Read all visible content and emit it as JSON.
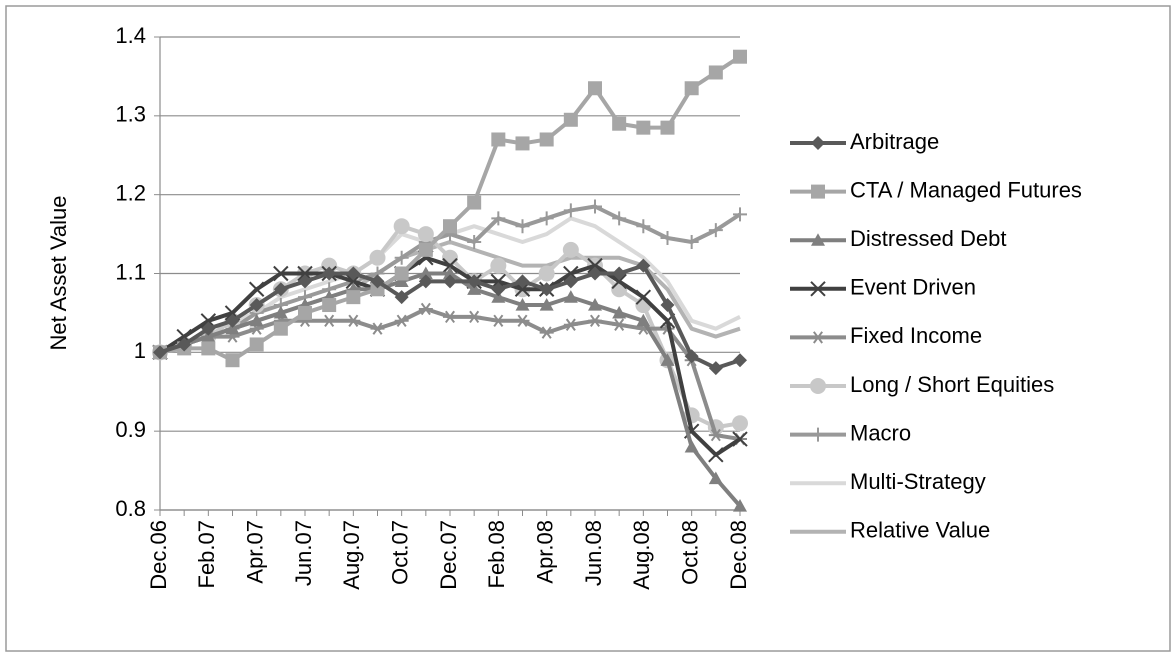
{
  "chart_data": {
    "type": "line",
    "y_label": "Net Asset Value",
    "categories": [
      "Dec.06",
      null,
      "Feb.07",
      null,
      "Apr.07",
      null,
      "Jun.07",
      null,
      "Aug.07",
      null,
      "Oct.07",
      null,
      "Dec.07",
      null,
      "Feb.08",
      null,
      "Apr.08",
      null,
      "Jun.08",
      null,
      "Aug.08",
      null,
      "Oct.08",
      null,
      "Dec.08"
    ],
    "ylim": [
      0.8,
      1.4
    ],
    "yticks": [
      0.8,
      0.9,
      1,
      1.1,
      1.2,
      1.3,
      1.4
    ],
    "grid": true,
    "legend": "right",
    "series": [
      {
        "name": "Arbitrage",
        "color": "#595959",
        "marker": "diamond",
        "values": [
          1.0,
          1.01,
          1.03,
          1.04,
          1.06,
          1.08,
          1.09,
          1.1,
          1.1,
          1.09,
          1.07,
          1.09,
          1.09,
          1.09,
          1.08,
          1.09,
          1.08,
          1.09,
          1.1,
          1.1,
          1.11,
          1.06,
          0.995,
          0.98,
          0.99
        ]
      },
      {
        "name": "CTA / Managed Futures",
        "color": "#a6a6a6",
        "marker": "square",
        "values": [
          1.0,
          1.005,
          1.005,
          0.99,
          1.01,
          1.03,
          1.05,
          1.06,
          1.07,
          1.08,
          1.1,
          1.13,
          1.16,
          1.19,
          1.27,
          1.265,
          1.27,
          1.295,
          1.335,
          1.29,
          1.285,
          1.285,
          1.335,
          1.355,
          1.375
        ]
      },
      {
        "name": "Distressed Debt",
        "color": "#7f7f7f",
        "marker": "triangle",
        "values": [
          1.0,
          1.01,
          1.02,
          1.03,
          1.04,
          1.05,
          1.06,
          1.07,
          1.08,
          1.08,
          1.09,
          1.1,
          1.1,
          1.08,
          1.07,
          1.06,
          1.06,
          1.07,
          1.06,
          1.05,
          1.04,
          0.99,
          0.88,
          0.84,
          0.805
        ]
      },
      {
        "name": "Event Driven",
        "color": "#404040",
        "marker": "x",
        "values": [
          1.0,
          1.02,
          1.04,
          1.05,
          1.08,
          1.1,
          1.1,
          1.1,
          1.09,
          1.08,
          1.1,
          1.12,
          1.11,
          1.09,
          1.09,
          1.08,
          1.08,
          1.1,
          1.11,
          1.09,
          1.07,
          1.04,
          0.9,
          0.87,
          0.89
        ]
      },
      {
        "name": "Fixed Income",
        "color": "#8c8c8c",
        "marker": "asterisk",
        "values": [
          1.0,
          1.01,
          1.02,
          1.02,
          1.03,
          1.04,
          1.04,
          1.04,
          1.04,
          1.03,
          1.04,
          1.055,
          1.045,
          1.045,
          1.04,
          1.04,
          1.025,
          1.035,
          1.04,
          1.035,
          1.03,
          1.03,
          0.99,
          0.895,
          0.89
        ]
      },
      {
        "name": "Long / Short Equities",
        "color": "#c8c8c8",
        "marker": "circle",
        "values": [
          1.0,
          1.01,
          1.02,
          1.04,
          1.06,
          1.08,
          1.1,
          1.11,
          1.1,
          1.12,
          1.16,
          1.15,
          1.12,
          1.09,
          1.11,
          1.08,
          1.1,
          1.13,
          1.11,
          1.08,
          1.06,
          0.99,
          0.92,
          0.905,
          0.91
        ]
      },
      {
        "name": "Macro",
        "color": "#999999",
        "marker": "plus",
        "values": [
          1.0,
          1.01,
          1.02,
          1.03,
          1.05,
          1.06,
          1.07,
          1.08,
          1.09,
          1.1,
          1.12,
          1.14,
          1.15,
          1.14,
          1.17,
          1.16,
          1.17,
          1.18,
          1.185,
          1.17,
          1.16,
          1.145,
          1.14,
          1.155,
          1.175
        ]
      },
      {
        "name": "Multi-Strategy",
        "color": "#d9d9d9",
        "marker": "none",
        "values": [
          1.0,
          1.01,
          1.02,
          1.04,
          1.05,
          1.07,
          1.08,
          1.09,
          1.1,
          1.12,
          1.15,
          1.14,
          1.15,
          1.16,
          1.15,
          1.14,
          1.15,
          1.17,
          1.16,
          1.14,
          1.12,
          1.09,
          1.04,
          1.03,
          1.045
        ]
      },
      {
        "name": "Relative Value",
        "color": "#b3b3b3",
        "marker": "none",
        "values": [
          1.0,
          1.01,
          1.02,
          1.03,
          1.04,
          1.05,
          1.06,
          1.07,
          1.08,
          1.1,
          1.12,
          1.13,
          1.14,
          1.13,
          1.12,
          1.11,
          1.11,
          1.12,
          1.12,
          1.12,
          1.11,
          1.08,
          1.03,
          1.02,
          1.03
        ]
      }
    ]
  }
}
